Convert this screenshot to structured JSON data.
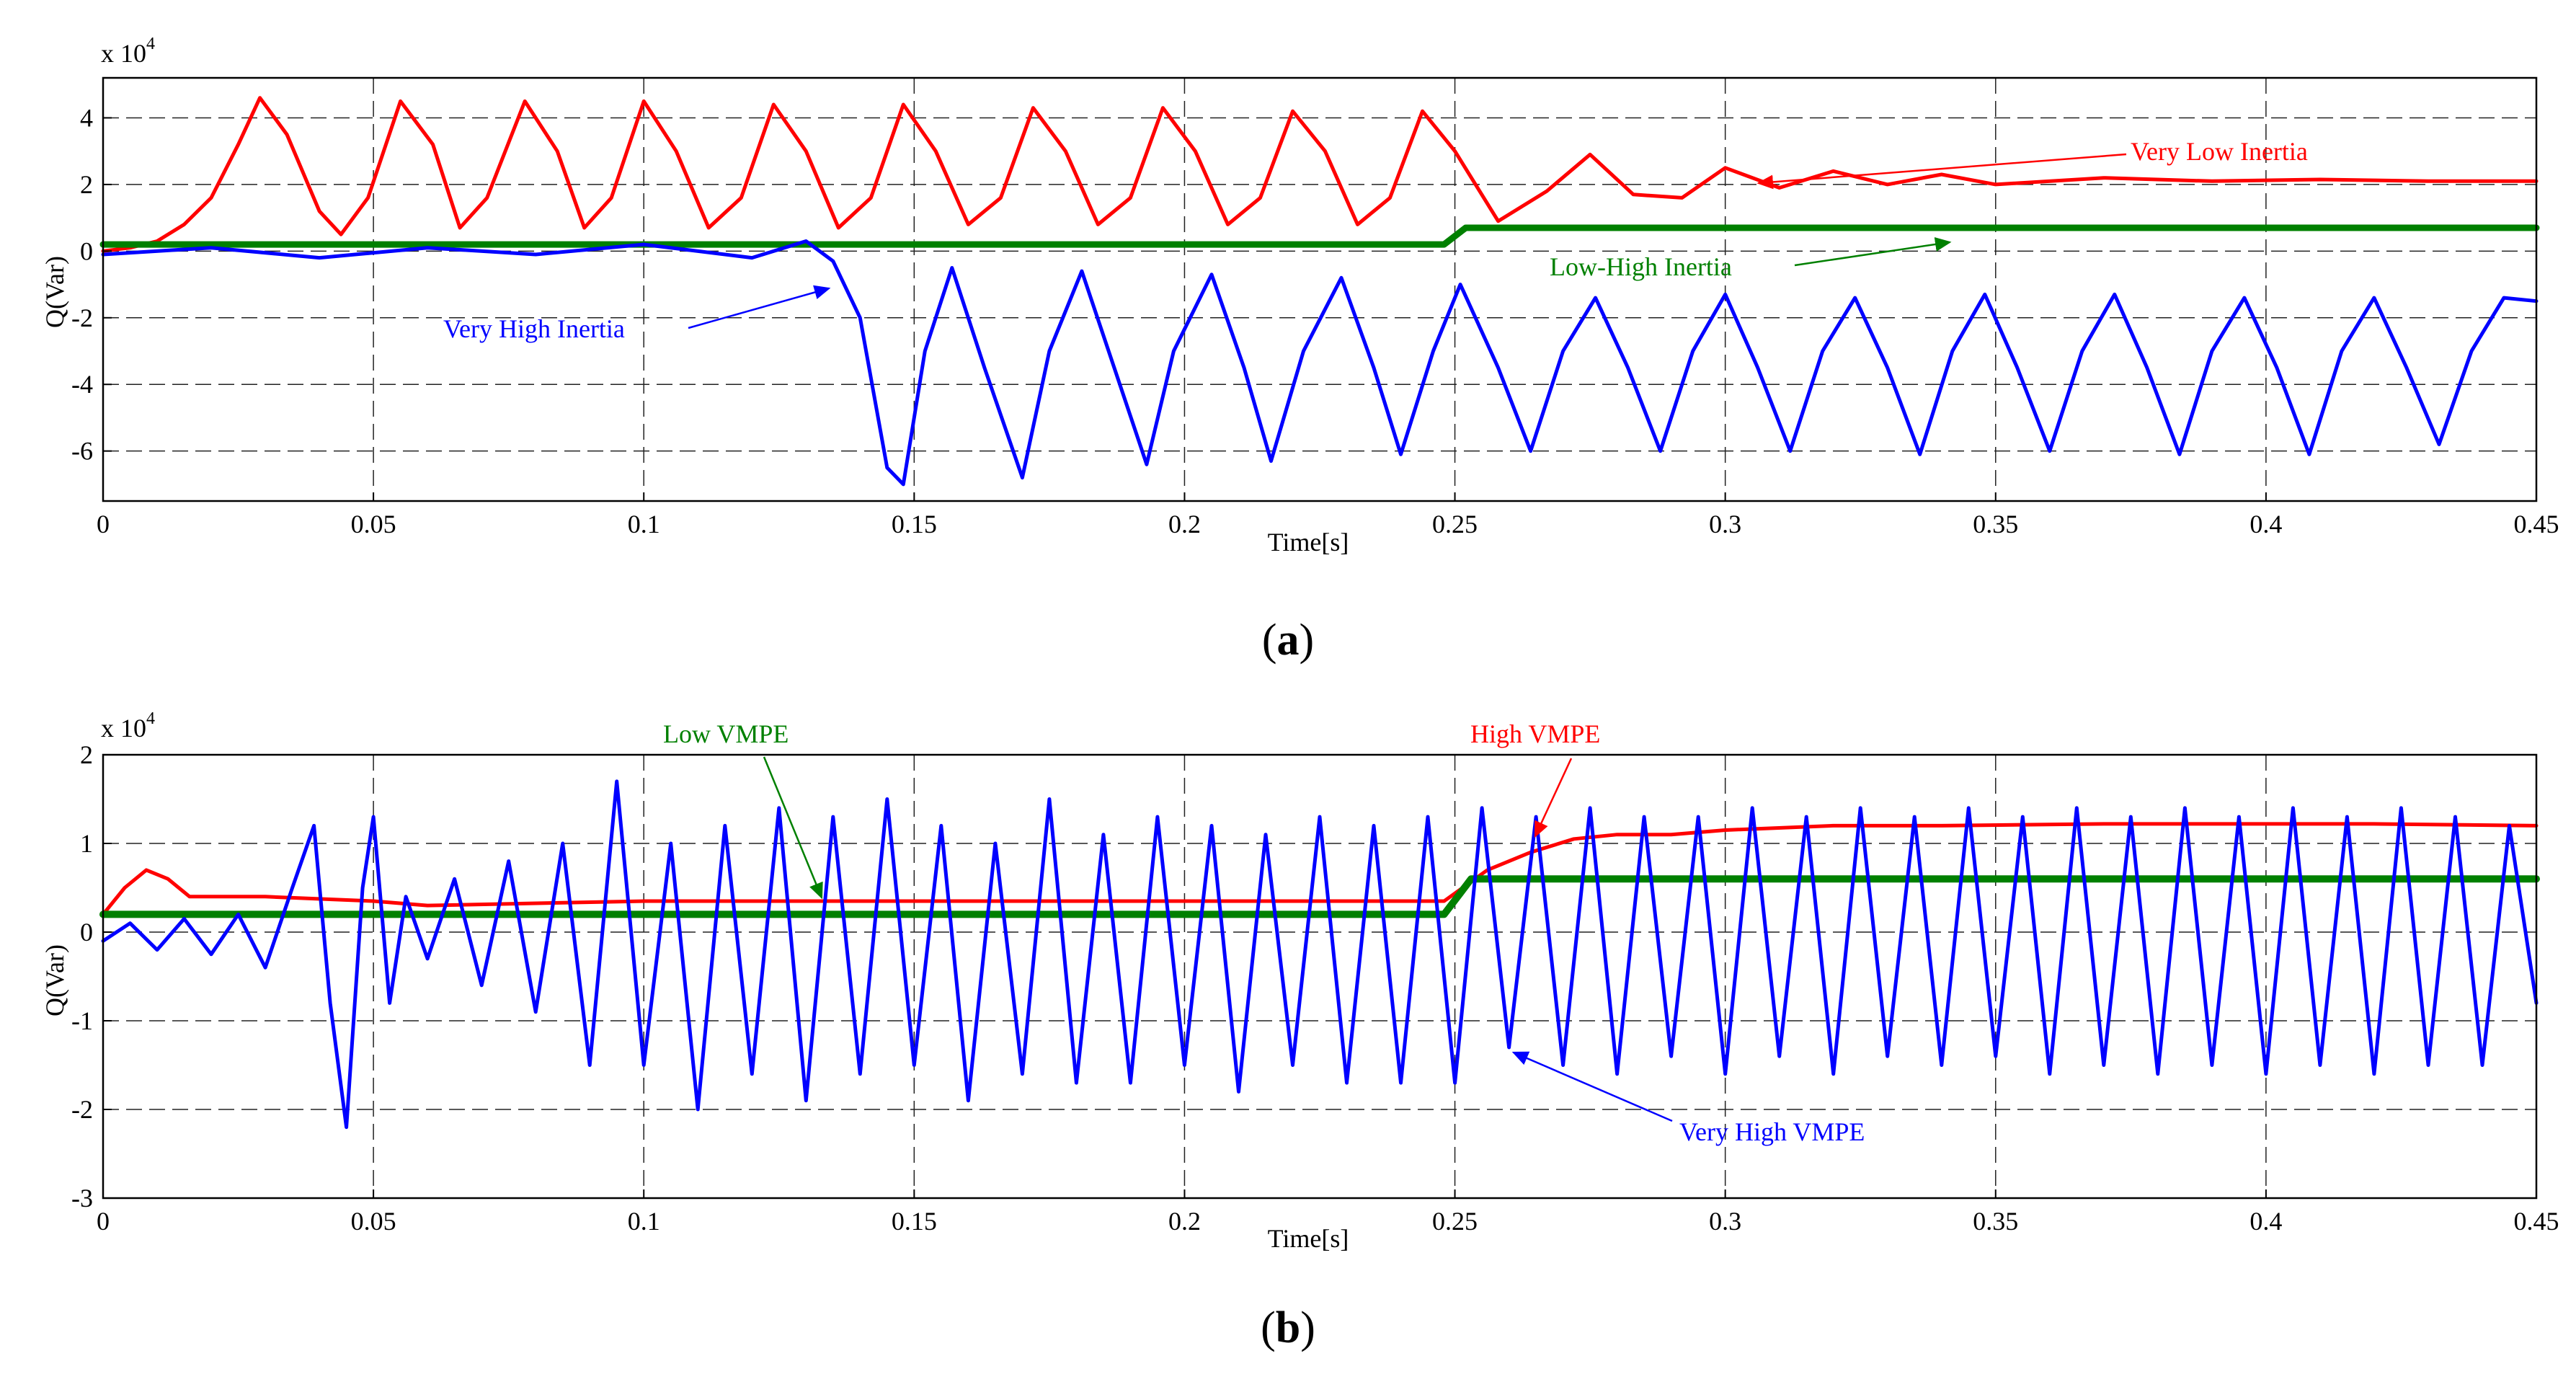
{
  "chart_data": [
    {
      "id": "a",
      "type": "line",
      "caption_open": "(",
      "caption_letter": "a",
      "caption_close": ")",
      "ylabel": "Q(Var)",
      "xlabel": "Time[s]",
      "y_scale_label": "x 10",
      "y_scale_exp": "4",
      "xlim": [
        0,
        0.45
      ],
      "ylim": [
        -7.5,
        5.2
      ],
      "xticks": [
        0,
        0.05,
        0.1,
        0.15,
        0.2,
        0.25,
        0.3,
        0.35,
        0.4,
        0.45
      ],
      "xtick_labels": [
        "0",
        "0.05",
        "0.1",
        "0.15",
        "0.2",
        "0.25",
        "0.3",
        "0.35",
        "0.4",
        "0.45"
      ],
      "yticks": [
        -6,
        -4,
        -2,
        0,
        2,
        4
      ],
      "ytick_labels": [
        "-6",
        "-4",
        "-2",
        "0",
        "2",
        "4"
      ],
      "grid": true,
      "series": [
        {
          "name": "Very Low Inertia",
          "color": "#ff0000",
          "x": [
            0,
            0.005,
            0.01,
            0.015,
            0.02,
            0.025,
            0.029,
            0.034,
            0.04,
            0.044,
            0.049,
            0.055,
            0.061,
            0.066,
            0.071,
            0.078,
            0.084,
            0.089,
            0.094,
            0.1,
            0.106,
            0.112,
            0.118,
            0.124,
            0.13,
            0.136,
            0.142,
            0.148,
            0.154,
            0.16,
            0.166,
            0.172,
            0.178,
            0.184,
            0.19,
            0.196,
            0.202,
            0.208,
            0.214,
            0.22,
            0.226,
            0.232,
            0.238,
            0.244,
            0.25,
            0.258,
            0.267,
            0.275,
            0.283,
            0.292,
            0.3,
            0.31,
            0.32,
            0.33,
            0.34,
            0.35,
            0.37,
            0.39,
            0.41,
            0.43,
            0.45
          ],
          "values": [
            0,
            0.1,
            0.3,
            0.8,
            1.6,
            3.2,
            4.6,
            3.5,
            1.2,
            0.5,
            1.6,
            4.5,
            3.2,
            0.7,
            1.6,
            4.5,
            3.0,
            0.7,
            1.6,
            4.5,
            3.0,
            0.7,
            1.6,
            4.4,
            3.0,
            0.7,
            1.6,
            4.4,
            3.0,
            0.8,
            1.6,
            4.3,
            3.0,
            0.8,
            1.6,
            4.3,
            3.0,
            0.8,
            1.6,
            4.2,
            3.0,
            0.8,
            1.6,
            4.2,
            3.0,
            0.9,
            1.8,
            2.9,
            1.7,
            1.6,
            2.5,
            1.9,
            2.4,
            2.0,
            2.3,
            2.0,
            2.2,
            2.1,
            2.15,
            2.1,
            2.1
          ]
        },
        {
          "name": "Low-High Inertia",
          "color": "#008000",
          "x": [
            0,
            0.248,
            0.252,
            0.45
          ],
          "values": [
            0.2,
            0.2,
            0.7,
            0.7
          ]
        },
        {
          "name": "Very High Inertia",
          "color": "#0000ff",
          "x": [
            0,
            0.02,
            0.04,
            0.06,
            0.08,
            0.1,
            0.12,
            0.13,
            0.135,
            0.14,
            0.145,
            0.148,
            0.152,
            0.157,
            0.163,
            0.17,
            0.175,
            0.181,
            0.187,
            0.193,
            0.198,
            0.205,
            0.211,
            0.216,
            0.222,
            0.229,
            0.235,
            0.24,
            0.246,
            0.251,
            0.258,
            0.264,
            0.27,
            0.276,
            0.282,
            0.288,
            0.294,
            0.3,
            0.306,
            0.312,
            0.318,
            0.324,
            0.33,
            0.336,
            0.342,
            0.348,
            0.354,
            0.36,
            0.366,
            0.372,
            0.378,
            0.384,
            0.39,
            0.396,
            0.402,
            0.408,
            0.414,
            0.42,
            0.426,
            0.432,
            0.438,
            0.444,
            0.45
          ],
          "values": [
            -0.1,
            0.1,
            -0.2,
            0.1,
            -0.1,
            0.2,
            -0.2,
            0.3,
            -0.3,
            -2.0,
            -6.5,
            -7.0,
            -3.0,
            -0.5,
            -3.5,
            -6.8,
            -3.0,
            -0.6,
            -3.5,
            -6.4,
            -3.0,
            -0.7,
            -3.5,
            -6.3,
            -3.0,
            -0.8,
            -3.5,
            -6.1,
            -3.0,
            -1.0,
            -3.5,
            -6.0,
            -3.0,
            -1.4,
            -3.5,
            -6.0,
            -3.0,
            -1.3,
            -3.5,
            -6.0,
            -3.0,
            -1.4,
            -3.5,
            -6.1,
            -3.0,
            -1.3,
            -3.5,
            -6.0,
            -3.0,
            -1.3,
            -3.5,
            -6.1,
            -3.0,
            -1.4,
            -3.5,
            -6.1,
            -3.0,
            -1.4,
            -3.5,
            -5.8,
            -3.0,
            -1.4,
            -1.5
          ]
        }
      ],
      "annotations": [
        {
          "text": "Very Low Inertia",
          "color": "#ff0000"
        },
        {
          "text": "Low-High Inertia",
          "color": "#008000"
        },
        {
          "text": "Very High Inertia",
          "color": "#0000ff"
        }
      ]
    },
    {
      "id": "b",
      "type": "line",
      "caption_open": "(",
      "caption_letter": "b",
      "caption_close": ")",
      "ylabel": "Q(Var)",
      "xlabel": "Time[s]",
      "y_scale_label": "x 10",
      "y_scale_exp": "4",
      "xlim": [
        0,
        0.45
      ],
      "ylim": [
        -3,
        2
      ],
      "xticks": [
        0,
        0.05,
        0.1,
        0.15,
        0.2,
        0.25,
        0.3,
        0.35,
        0.4,
        0.45
      ],
      "xtick_labels": [
        "0",
        "0.05",
        "0.1",
        "0.15",
        "0.2",
        "0.25",
        "0.3",
        "0.35",
        "0.4",
        "0.45"
      ],
      "yticks": [
        -3,
        -2,
        -1,
        0,
        1,
        2
      ],
      "ytick_labels": [
        "-3",
        "-2",
        "-1",
        "0",
        "1",
        "2"
      ],
      "grid": true,
      "series": [
        {
          "name": "High VMPE",
          "color": "#ff0000",
          "x": [
            0,
            0.004,
            0.008,
            0.012,
            0.016,
            0.02,
            0.03,
            0.05,
            0.06,
            0.1,
            0.15,
            0.2,
            0.248,
            0.256,
            0.264,
            0.272,
            0.28,
            0.29,
            0.3,
            0.32,
            0.34,
            0.37,
            0.4,
            0.42,
            0.45
          ],
          "values": [
            0.2,
            0.5,
            0.7,
            0.6,
            0.4,
            0.4,
            0.4,
            0.35,
            0.3,
            0.35,
            0.35,
            0.35,
            0.35,
            0.7,
            0.9,
            1.05,
            1.1,
            1.1,
            1.15,
            1.2,
            1.2,
            1.22,
            1.22,
            1.22,
            1.2
          ]
        },
        {
          "name": "Low VMPE",
          "color": "#008000",
          "x": [
            0,
            0.248,
            0.253,
            0.45
          ],
          "values": [
            0.2,
            0.2,
            0.6,
            0.6
          ]
        },
        {
          "name": "Very High VMPE",
          "color": "#0000ff",
          "x": [
            0,
            0.005,
            0.01,
            0.015,
            0.02,
            0.025,
            0.03,
            0.035,
            0.039,
            0.042,
            0.045,
            0.048,
            0.05,
            0.053,
            0.056,
            0.06,
            0.065,
            0.07,
            0.075,
            0.08,
            0.085,
            0.09,
            0.095,
            0.1,
            0.105,
            0.11,
            0.115,
            0.12,
            0.125,
            0.13,
            0.135,
            0.14,
            0.145,
            0.15,
            0.155,
            0.16,
            0.165,
            0.17,
            0.175,
            0.18,
            0.185,
            0.19,
            0.195,
            0.2,
            0.205,
            0.21,
            0.215,
            0.22,
            0.225,
            0.23,
            0.235,
            0.24,
            0.245,
            0.25,
            0.255,
            0.26,
            0.265,
            0.27,
            0.275,
            0.28,
            0.285,
            0.29,
            0.295,
            0.3,
            0.305,
            0.31,
            0.315,
            0.32,
            0.325,
            0.33,
            0.335,
            0.34,
            0.345,
            0.35,
            0.355,
            0.36,
            0.365,
            0.37,
            0.375,
            0.38,
            0.385,
            0.39,
            0.395,
            0.4,
            0.405,
            0.41,
            0.415,
            0.42,
            0.425,
            0.43,
            0.435,
            0.44,
            0.445,
            0.45
          ],
          "values": [
            -0.1,
            0.1,
            -0.2,
            0.15,
            -0.25,
            0.2,
            -0.4,
            0.5,
            1.2,
            -0.8,
            -2.2,
            0.5,
            1.3,
            -0.8,
            0.4,
            -0.3,
            0.6,
            -0.6,
            0.8,
            -0.9,
            1.0,
            -1.5,
            1.7,
            -1.5,
            1.0,
            -2.0,
            1.2,
            -1.6,
            1.4,
            -1.9,
            1.3,
            -1.6,
            1.5,
            -1.5,
            1.2,
            -1.9,
            1.0,
            -1.6,
            1.5,
            -1.7,
            1.1,
            -1.7,
            1.3,
            -1.5,
            1.2,
            -1.8,
            1.1,
            -1.5,
            1.3,
            -1.7,
            1.2,
            -1.7,
            1.3,
            -1.7,
            1.4,
            -1.3,
            1.3,
            -1.5,
            1.4,
            -1.6,
            1.3,
            -1.4,
            1.3,
            -1.6,
            1.4,
            -1.4,
            1.3,
            -1.6,
            1.4,
            -1.4,
            1.3,
            -1.5,
            1.4,
            -1.4,
            1.3,
            -1.6,
            1.4,
            -1.5,
            1.3,
            -1.6,
            1.4,
            -1.5,
            1.3,
            -1.6,
            1.4,
            -1.5,
            1.3,
            -1.6,
            1.4,
            -1.5,
            1.3,
            -1.5,
            1.2,
            -0.8
          ]
        }
      ],
      "annotations": [
        {
          "text": "Low VMPE",
          "color": "#008000"
        },
        {
          "text": "High VMPE",
          "color": "#ff0000"
        },
        {
          "text": "Very High VMPE",
          "color": "#0000ff"
        }
      ]
    }
  ]
}
